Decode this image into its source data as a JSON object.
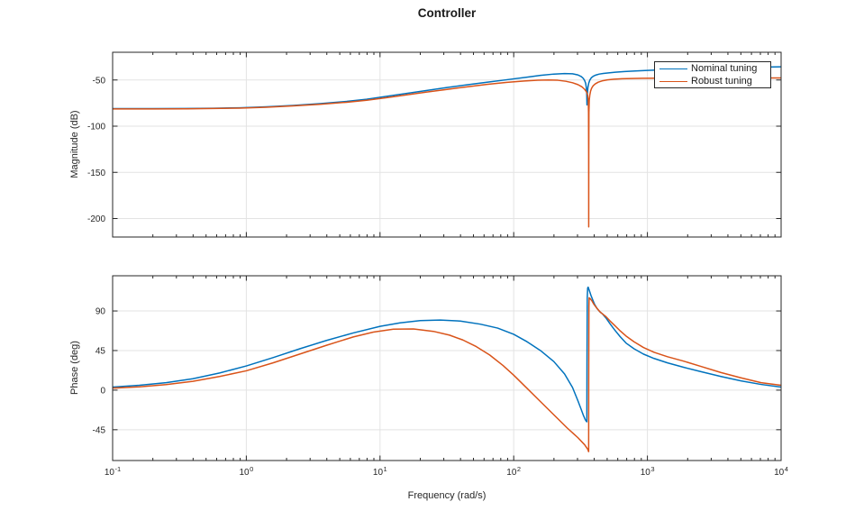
{
  "title": "Controller",
  "colors": {
    "nominal": "#0072BD",
    "robust": "#D95319",
    "grid": "#e3e3e3",
    "axis": "#262626",
    "tick_label": "#262626",
    "background": "#ffffff"
  },
  "legend": {
    "position": "top-right",
    "items": [
      {
        "label": "Nominal tuning",
        "color": "#0072BD"
      },
      {
        "label": "Robust tuning",
        "color": "#D95319"
      }
    ]
  },
  "xaxis": {
    "label": "Frequency (rad/s)",
    "scale": "log",
    "xlim": [
      0.1,
      10000
    ],
    "xlim_log10": [
      -1,
      4
    ],
    "tick_exponents": [
      -1,
      0,
      1,
      2,
      3,
      4
    ]
  },
  "chart_data": [
    {
      "type": "line",
      "name": "magnitude",
      "title": "Controller",
      "xlabel": "",
      "ylabel": "Magnitude (dB)",
      "xscale": "log",
      "xlim": [
        0.1,
        10000
      ],
      "ylim": [
        -220,
        -20
      ],
      "yticks": [
        -50,
        -100,
        -150,
        -200
      ],
      "grid": true,
      "x_unit": "log10(rad/s)",
      "series": [
        {
          "name": "Nominal tuning",
          "color": "#0072BD",
          "points": [
            [
              -1,
              -81
            ],
            [
              -0.7,
              -81
            ],
            [
              -0.45,
              -80.9
            ],
            [
              -0.25,
              -80.6
            ],
            [
              -0.05,
              -80.1
            ],
            [
              0.15,
              -79
            ],
            [
              0.35,
              -77.5
            ],
            [
              0.55,
              -75.6
            ],
            [
              0.75,
              -73.2
            ],
            [
              0.9,
              -70.8
            ],
            [
              1.05,
              -67.7
            ],
            [
              1.2,
              -64.5
            ],
            [
              1.35,
              -61.3
            ],
            [
              1.5,
              -58.2
            ],
            [
              1.65,
              -55.2
            ],
            [
              1.8,
              -52.4
            ],
            [
              1.95,
              -49.7
            ],
            [
              2.1,
              -46.9
            ],
            [
              2.2,
              -45
            ],
            [
              2.3,
              -43.6
            ],
            [
              2.38,
              -43
            ],
            [
              2.44,
              -43.3
            ],
            [
              2.48,
              -44.5
            ],
            [
              2.505,
              -46.3
            ],
            [
              2.52,
              -48.2
            ],
            [
              2.53,
              -50.5
            ],
            [
              2.538,
              -53.5
            ],
            [
              2.543,
              -58
            ],
            [
              2.546,
              -65
            ],
            [
              2.548,
              -77
            ],
            [
              2.551,
              -65
            ],
            [
              2.555,
              -58
            ],
            [
              2.561,
              -53.5
            ],
            [
              2.569,
              -50.2
            ],
            [
              2.58,
              -47.7
            ],
            [
              2.595,
              -45.9
            ],
            [
              2.615,
              -44.6
            ],
            [
              2.64,
              -43.6
            ],
            [
              2.67,
              -42.9
            ],
            [
              2.71,
              -42.3
            ],
            [
              2.76,
              -41.6
            ],
            [
              2.83,
              -40.9
            ],
            [
              2.91,
              -40.2
            ],
            [
              3,
              -39.6
            ],
            [
              3.12,
              -38.9
            ],
            [
              3.26,
              -38.2
            ],
            [
              3.4,
              -37.6
            ],
            [
              3.55,
              -37
            ],
            [
              3.7,
              -36.5
            ],
            [
              3.85,
              -36.1
            ],
            [
              4,
              -35.7
            ]
          ]
        },
        {
          "name": "Robust tuning",
          "color": "#D95319",
          "points": [
            [
              -1,
              -81.3
            ],
            [
              -0.7,
              -81.3
            ],
            [
              -0.45,
              -81.2
            ],
            [
              -0.25,
              -80.9
            ],
            [
              -0.05,
              -80.5
            ],
            [
              0.15,
              -79.5
            ],
            [
              0.35,
              -78.1
            ],
            [
              0.55,
              -76.3
            ],
            [
              0.75,
              -74.1
            ],
            [
              0.9,
              -71.9
            ],
            [
              1.05,
              -69.1
            ],
            [
              1.2,
              -66.1
            ],
            [
              1.35,
              -63.1
            ],
            [
              1.5,
              -60.2
            ],
            [
              1.65,
              -57.4
            ],
            [
              1.8,
              -54.8
            ],
            [
              1.95,
              -52.6
            ],
            [
              2.08,
              -51.1
            ],
            [
              2.18,
              -50.3
            ],
            [
              2.26,
              -50
            ],
            [
              2.33,
              -50.3
            ],
            [
              2.39,
              -51.4
            ],
            [
              2.44,
              -53
            ],
            [
              2.48,
              -55
            ],
            [
              2.51,
              -57.4
            ],
            [
              2.53,
              -60
            ],
            [
              2.545,
              -63
            ],
            [
              2.553,
              -66.5
            ],
            [
              2.5575,
              -72
            ],
            [
              2.5595,
              -85
            ],
            [
              2.5605,
              -130
            ],
            [
              2.561,
              -209
            ],
            [
              2.5615,
              -130
            ],
            [
              2.5625,
              -85
            ],
            [
              2.565,
              -72
            ],
            [
              2.569,
              -66.5
            ],
            [
              2.575,
              -62
            ],
            [
              2.583,
              -58.8
            ],
            [
              2.594,
              -56.3
            ],
            [
              2.61,
              -54.2
            ],
            [
              2.632,
              -52.4
            ],
            [
              2.66,
              -51
            ],
            [
              2.7,
              -49.9
            ],
            [
              2.75,
              -49.2
            ],
            [
              2.81,
              -48.7
            ],
            [
              2.88,
              -48.4
            ],
            [
              2.96,
              -48.2
            ],
            [
              3.08,
              -48
            ],
            [
              3.25,
              -47.9
            ],
            [
              3.45,
              -47.9
            ],
            [
              3.7,
              -47.8
            ],
            [
              4,
              -47.8
            ]
          ]
        }
      ]
    },
    {
      "type": "line",
      "name": "phase",
      "xlabel": "Frequency (rad/s)",
      "ylabel": "Phase (deg)",
      "xscale": "log",
      "xlim": [
        0.1,
        10000
      ],
      "ylim": [
        -80,
        130
      ],
      "yticks": [
        90,
        45,
        0,
        -45
      ],
      "grid": true,
      "x_unit": "log10(rad/s)",
      "series": [
        {
          "name": "Nominal tuning",
          "color": "#0072BD",
          "points": [
            [
              -1,
              3.5
            ],
            [
              -0.8,
              5.5
            ],
            [
              -0.6,
              8.5
            ],
            [
              -0.4,
              13
            ],
            [
              -0.2,
              19.5
            ],
            [
              0,
              27.5
            ],
            [
              0.2,
              37
            ],
            [
              0.4,
              47
            ],
            [
              0.6,
              56.5
            ],
            [
              0.8,
              65
            ],
            [
              1,
              72.5
            ],
            [
              1.15,
              76.5
            ],
            [
              1.3,
              79
            ],
            [
              1.45,
              79.7
            ],
            [
              1.6,
              78.5
            ],
            [
              1.75,
              75
            ],
            [
              1.88,
              70.5
            ],
            [
              2,
              63.5
            ],
            [
              2.1,
              55
            ],
            [
              2.2,
              45
            ],
            [
              2.3,
              32.5
            ],
            [
              2.38,
              18.5
            ],
            [
              2.44,
              3
            ],
            [
              2.48,
              -12
            ],
            [
              2.505,
              -22
            ],
            [
              2.522,
              -29
            ],
            [
              2.535,
              -33.5
            ],
            [
              2.544,
              -35.6
            ],
            [
              2.547,
              -35.9
            ],
            [
              2.548,
              30
            ],
            [
              2.55,
              105
            ],
            [
              2.553,
              116
            ],
            [
              2.557,
              117
            ],
            [
              2.565,
              113.5
            ],
            [
              2.577,
              108
            ],
            [
              2.59,
              103
            ],
            [
              2.605,
              97.5
            ],
            [
              2.625,
              92.5
            ],
            [
              2.648,
              88.5
            ],
            [
              2.665,
              86.5
            ],
            [
              2.69,
              82
            ],
            [
              2.72,
              75.5
            ],
            [
              2.755,
              68.5
            ],
            [
              2.795,
              61
            ],
            [
              2.84,
              53.5
            ],
            [
              2.9,
              47
            ],
            [
              2.97,
              41
            ],
            [
              3.05,
              36
            ],
            [
              3.15,
              31
            ],
            [
              3.27,
              26
            ],
            [
              3.4,
              21
            ],
            [
              3.55,
              15.5
            ],
            [
              3.7,
              10.5
            ],
            [
              3.85,
              6.5
            ],
            [
              4,
              3.5
            ]
          ]
        },
        {
          "name": "Robust tuning",
          "color": "#D95319",
          "points": [
            [
              -1,
              2.3
            ],
            [
              -0.8,
              3.8
            ],
            [
              -0.6,
              6.3
            ],
            [
              -0.4,
              10
            ],
            [
              -0.2,
              15.5
            ],
            [
              0,
              22
            ],
            [
              0.2,
              31
            ],
            [
              0.4,
              41
            ],
            [
              0.6,
              51
            ],
            [
              0.8,
              60.5
            ],
            [
              0.95,
              66
            ],
            [
              1.1,
              69.3
            ],
            [
              1.25,
              69.6
            ],
            [
              1.4,
              66.8
            ],
            [
              1.52,
              62.5
            ],
            [
              1.62,
              57
            ],
            [
              1.72,
              49.5
            ],
            [
              1.82,
              40
            ],
            [
              1.92,
              28
            ],
            [
              2,
              17
            ],
            [
              2.1,
              2
            ],
            [
              2.2,
              -13
            ],
            [
              2.3,
              -28
            ],
            [
              2.4,
              -43
            ],
            [
              2.48,
              -54
            ],
            [
              2.53,
              -62
            ],
            [
              2.555,
              -67.5
            ],
            [
              2.5595,
              -69.8
            ],
            [
              2.5605,
              -69.9
            ],
            [
              2.561,
              10
            ],
            [
              2.5625,
              95
            ],
            [
              2.564,
              105
            ],
            [
              2.572,
              104
            ],
            [
              2.585,
              101.5
            ],
            [
              2.6,
              97.5
            ],
            [
              2.62,
              93.5
            ],
            [
              2.642,
              89.5
            ],
            [
              2.665,
              86.5
            ],
            [
              2.69,
              83.5
            ],
            [
              2.718,
              79
            ],
            [
              2.752,
              74
            ],
            [
              2.792,
              68
            ],
            [
              2.84,
              61.5
            ],
            [
              2.9,
              55
            ],
            [
              2.97,
              48.5
            ],
            [
              3.05,
              43
            ],
            [
              3.15,
              38
            ],
            [
              3.27,
              33
            ],
            [
              3.4,
              27
            ],
            [
              3.55,
              20
            ],
            [
              3.7,
              14
            ],
            [
              3.85,
              8.5
            ],
            [
              4,
              5.5
            ]
          ]
        }
      ]
    }
  ]
}
